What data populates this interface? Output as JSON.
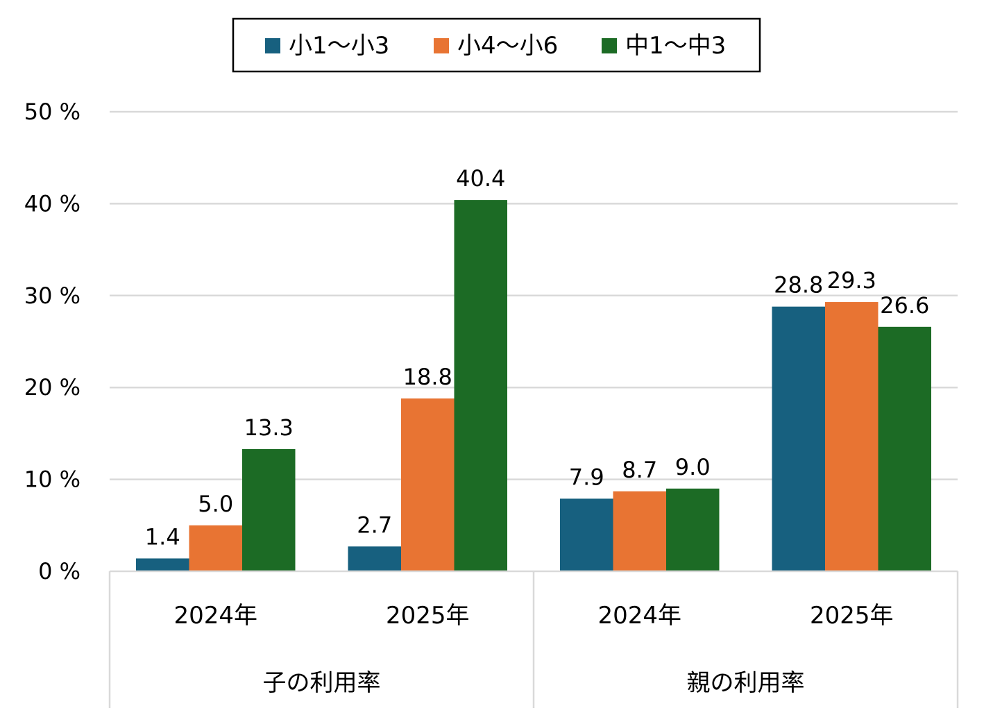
{
  "chart_data": {
    "type": "bar",
    "title": "",
    "xlabel": "",
    "ylabel": "",
    "ylim": [
      0,
      50
    ],
    "y_ticks": [
      {
        "value": 0,
        "label": "0 %"
      },
      {
        "value": 10,
        "label": "10 %"
      },
      {
        "value": 20,
        "label": "20 %"
      },
      {
        "value": 30,
        "label": "30 %"
      },
      {
        "value": 40,
        "label": "40 %"
      },
      {
        "value": 50,
        "label": "50 %"
      }
    ],
    "grid": true,
    "legend_position": "top-center",
    "groups": [
      {
        "label": "子の利用率",
        "categories": [
          "2024年",
          "2025年"
        ]
      },
      {
        "label": "親の利用率",
        "categories": [
          "2024年",
          "2025年"
        ]
      }
    ],
    "categories": [
      "2024年",
      "2025年",
      "2024年",
      "2025年"
    ],
    "series": [
      {
        "name": "小1～小3",
        "color": "#17607f",
        "values": [
          1.4,
          2.7,
          7.9,
          28.8
        ],
        "labels": [
          "1.4",
          "2.7",
          "7.9",
          "28.8"
        ]
      },
      {
        "name": "小4～小6",
        "color": "#e87433",
        "values": [
          5.0,
          18.8,
          8.7,
          29.3
        ],
        "labels": [
          "5.0",
          "18.8",
          "8.7",
          "29.3"
        ]
      },
      {
        "name": "中1～中3",
        "color": "#1c6b25",
        "values": [
          13.3,
          40.4,
          9.0,
          26.6
        ],
        "labels": [
          "13.3",
          "40.4",
          "9.0",
          "26.6"
        ]
      }
    ]
  }
}
